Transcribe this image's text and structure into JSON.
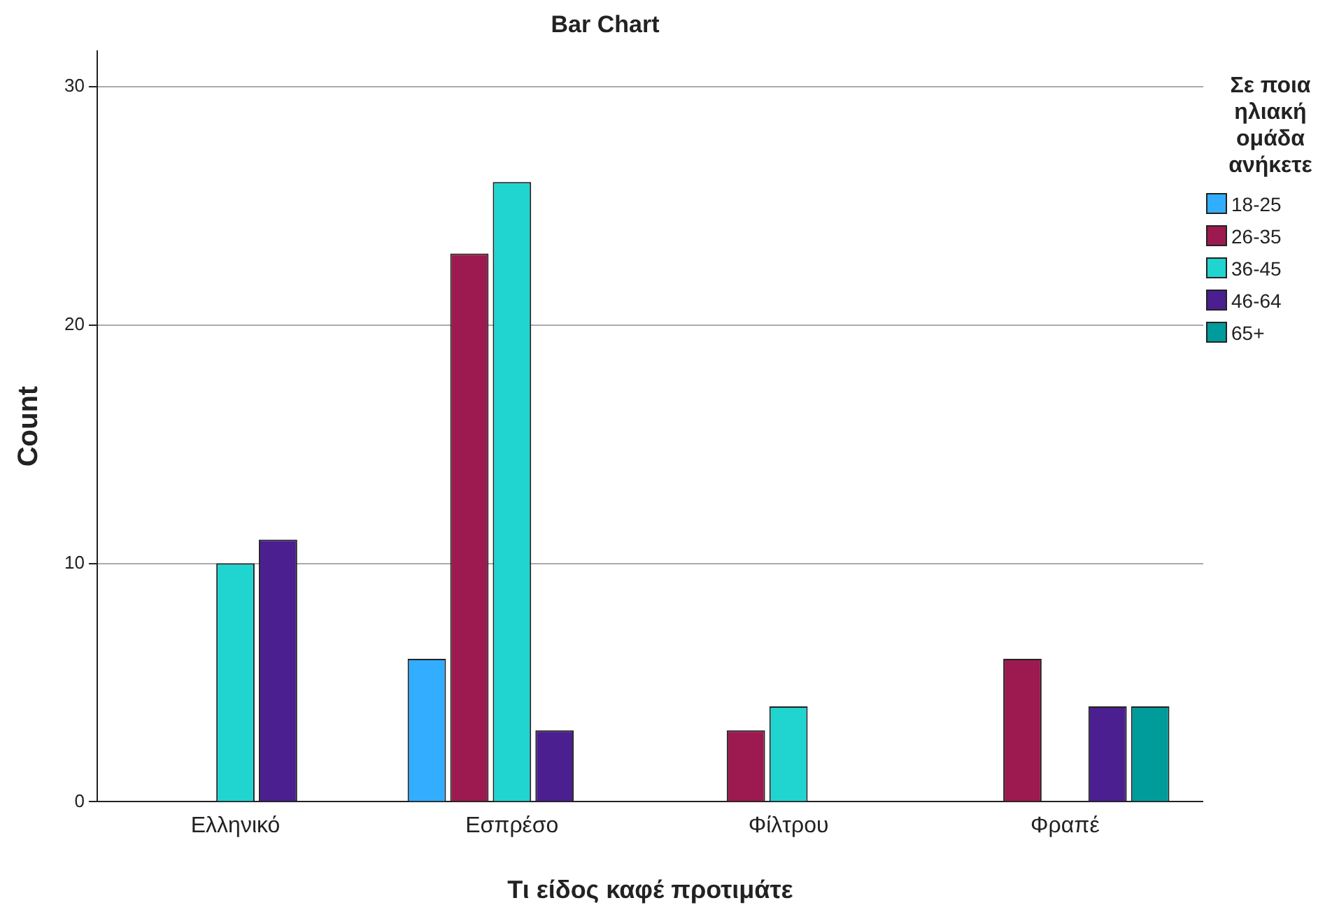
{
  "chart_data": {
    "type": "bar",
    "title": "Bar Chart",
    "xlabel": "Τι είδος καφέ προτιμάτε",
    "ylabel": "Count",
    "legend_title": "Σε ποια ηλιακή ομάδα ανήκετε",
    "categories": [
      "Ελληνικό",
      "Εσπρέσο",
      "Φίλτρου",
      "Φραπέ"
    ],
    "series": [
      {
        "name": "18-25",
        "color": "#33adff",
        "values": [
          null,
          6,
          null,
          null
        ]
      },
      {
        "name": "26-35",
        "color": "#9c1a4f",
        "values": [
          null,
          23,
          3,
          6
        ]
      },
      {
        "name": "36-45",
        "color": "#20d4d0",
        "values": [
          10,
          26,
          4,
          null
        ]
      },
      {
        "name": "46-64",
        "color": "#4b1f8f",
        "values": [
          11,
          3,
          null,
          4
        ]
      },
      {
        "name": "65+",
        "color": "#009b9b",
        "values": [
          null,
          null,
          null,
          4
        ]
      }
    ],
    "ylim": [
      0,
      31.5
    ],
    "yticks": [
      0,
      10,
      20,
      30
    ],
    "grid": "y",
    "legend": "right"
  }
}
